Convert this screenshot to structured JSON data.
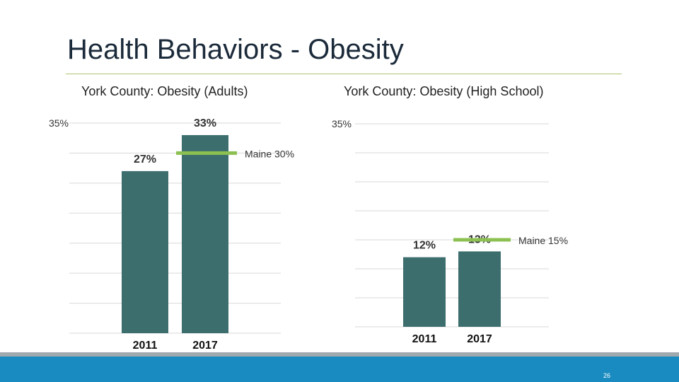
{
  "title": "Health Behaviors - Obesity",
  "page_number": "26",
  "colors": {
    "bar": "#3d6e6e",
    "benchmark": "#8cc152",
    "grid": "#d9d9d9",
    "footer": "#1a8bc0"
  },
  "chart_data": [
    {
      "type": "bar",
      "title": "York County: Obesity (Adults)",
      "categories": [
        "2011",
        "2017"
      ],
      "values": [
        27,
        33
      ],
      "data_labels": [
        "27%",
        "33%"
      ],
      "ylim": [
        0,
        35
      ],
      "y_tick_label": "35%",
      "grid": true,
      "benchmark": {
        "label": "Maine 30%",
        "value": 30,
        "category": "2017"
      }
    },
    {
      "type": "bar",
      "title": "York County: Obesity (High School)",
      "categories": [
        "2011",
        "2017"
      ],
      "values": [
        12,
        13
      ],
      "data_labels": [
        "12%",
        "13%"
      ],
      "ylim": [
        0,
        35
      ],
      "y_tick_label": "35%",
      "grid": true,
      "benchmark": {
        "label": "Maine 15%",
        "value": 15,
        "category": "2017"
      }
    }
  ]
}
